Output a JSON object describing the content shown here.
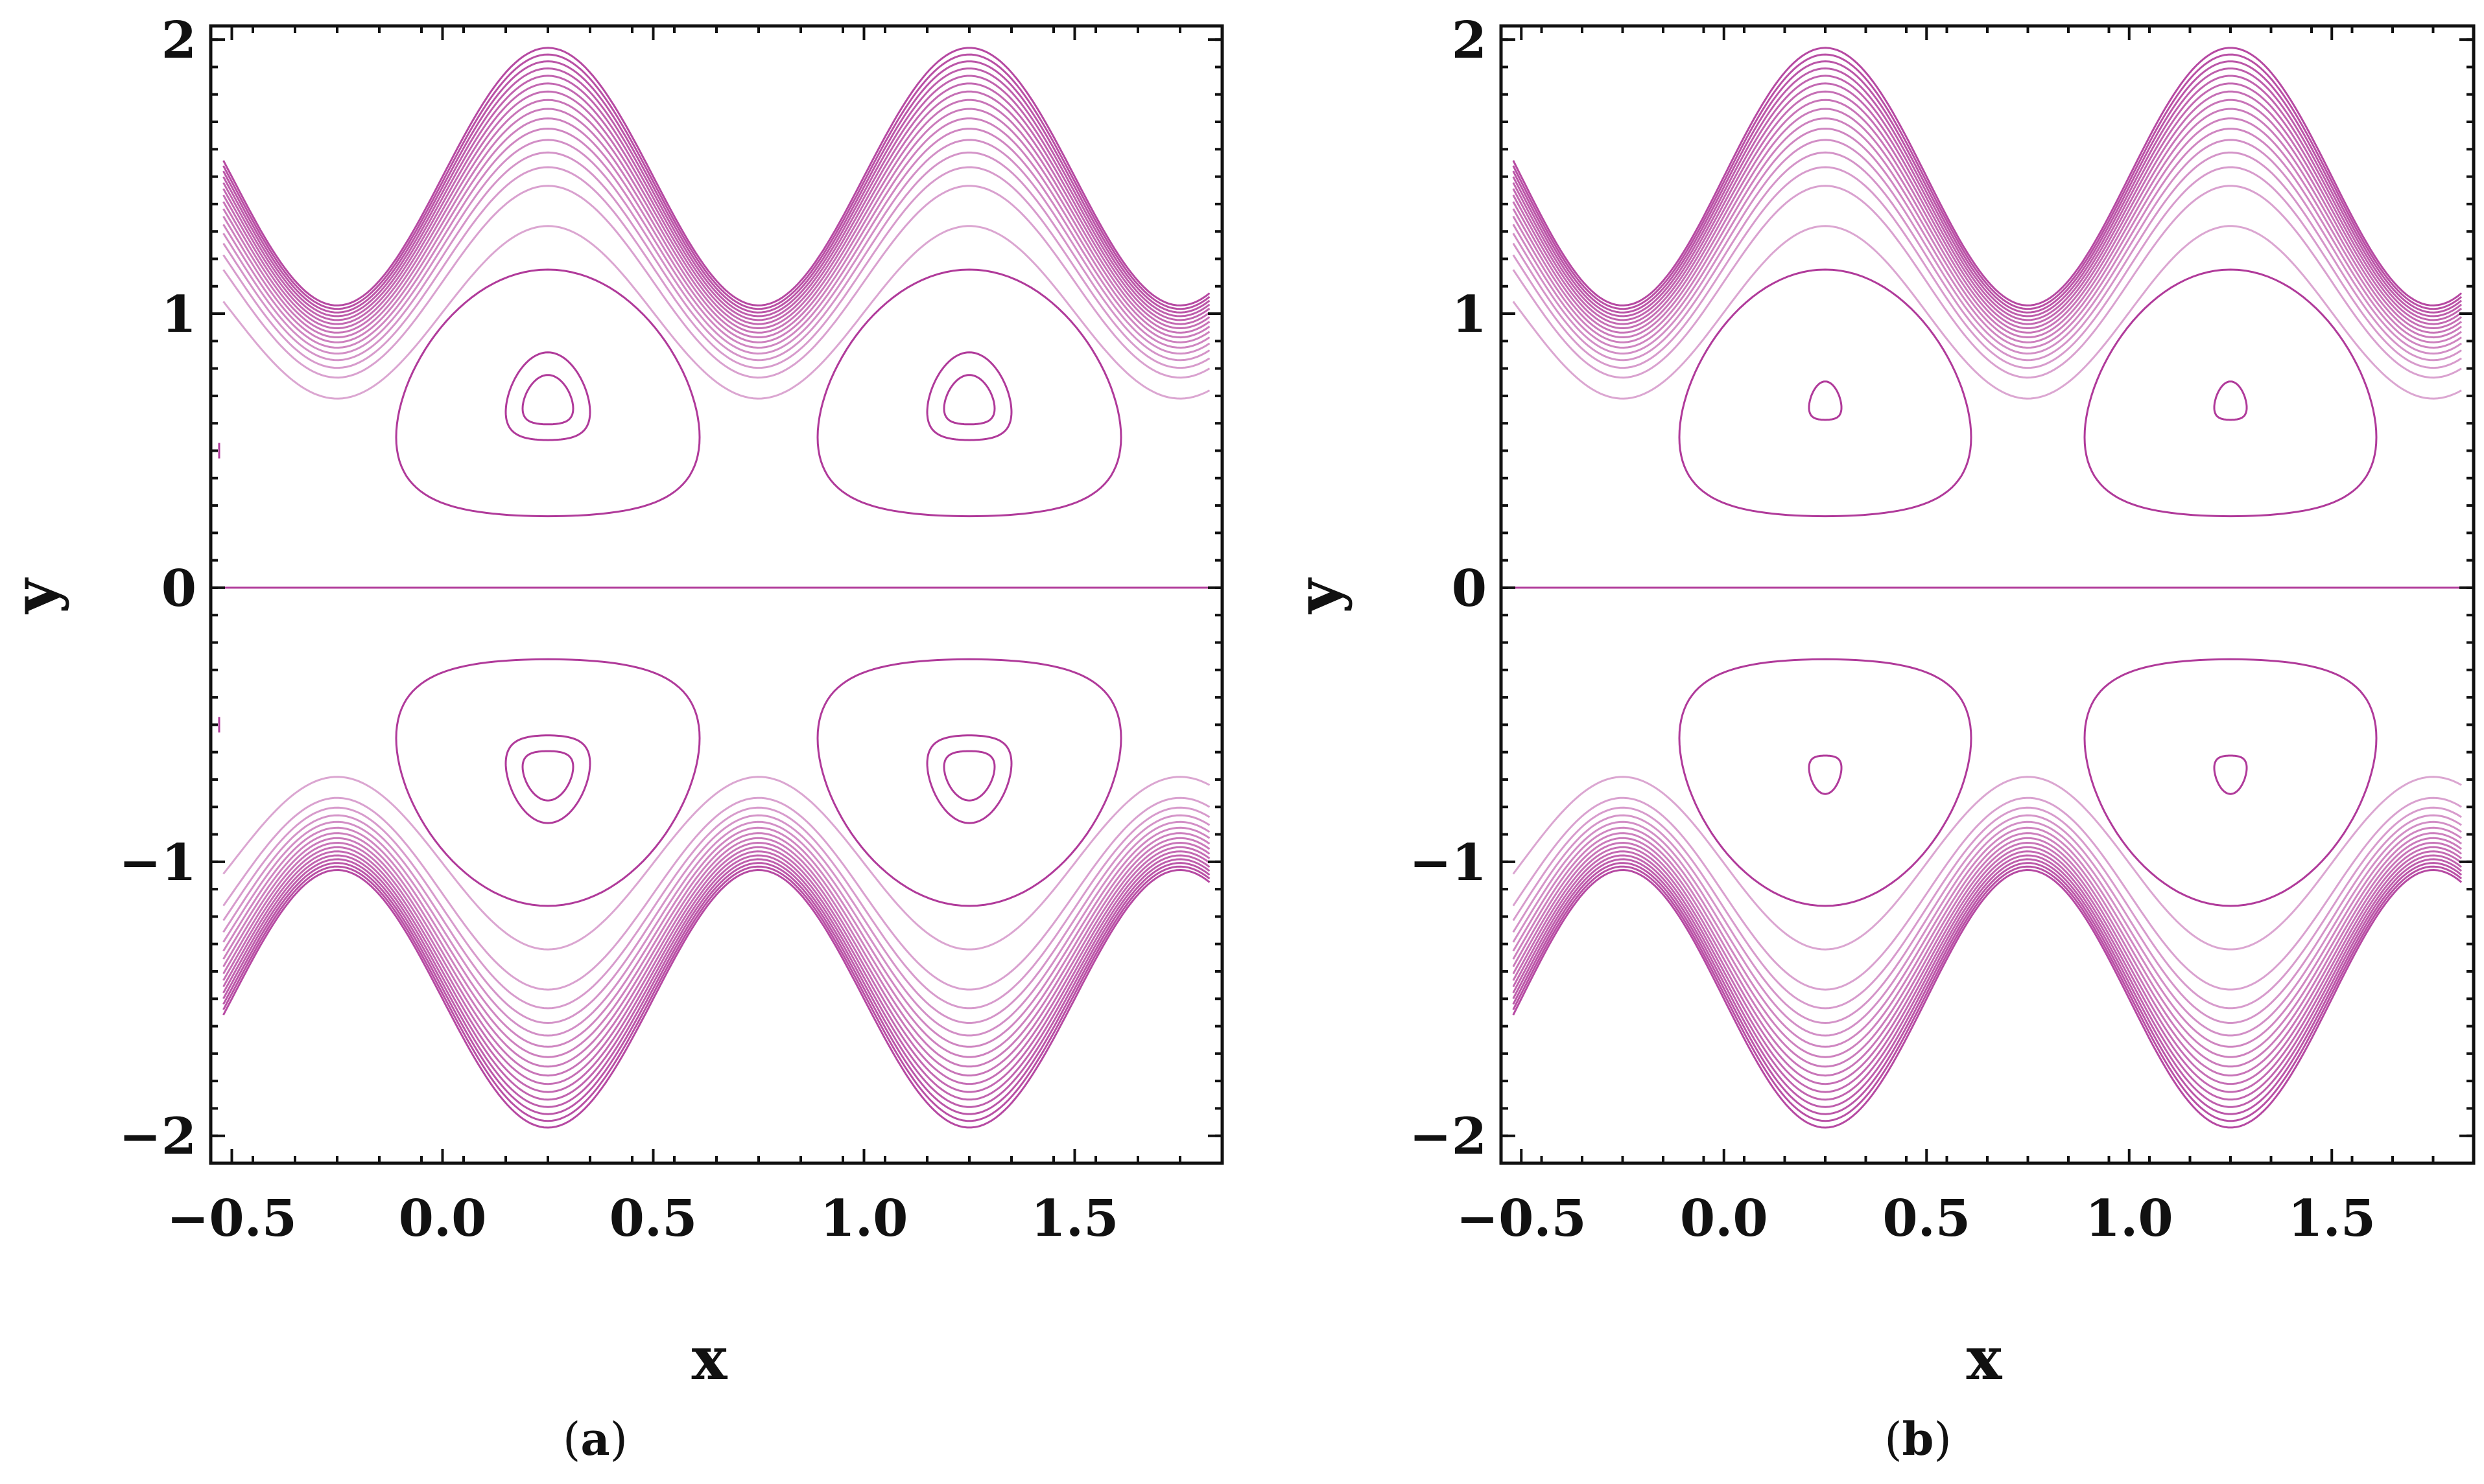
{
  "figure": {
    "stroke_color": "#b03a9a",
    "panels": [
      {
        "caption_open": "(",
        "caption_letter": "a",
        "caption_close": ")"
      },
      {
        "caption_open": "(",
        "caption_letter": "b",
        "caption_close": ")"
      }
    ]
  },
  "chart_data": [
    {
      "type": "contour",
      "panel": "a",
      "title": "",
      "xlabel": "x",
      "ylabel": "y",
      "xlim": [
        -0.55,
        1.85
      ],
      "ylim": [
        -2.1,
        2.05
      ],
      "xticks": [
        -0.5,
        0.0,
        0.5,
        1.0,
        1.5
      ],
      "xtick_labels": [
        "−0.5",
        "0.0",
        "0.5",
        "1.0",
        "1.5"
      ],
      "yticks": [
        -2,
        -1,
        0,
        1,
        2
      ],
      "ytick_labels": [
        "−2",
        "−1",
        "0",
        "1",
        "2"
      ],
      "wall": {
        "mean": 1.5,
        "amplitude": 0.47,
        "period": 1.0,
        "phase_x_of_max": 0.25
      },
      "wall_band_levels": 16,
      "centerline_y": 0,
      "vortex_centers": [
        [
          0.25,
          0.67
        ],
        [
          1.25,
          0.67
        ],
        [
          0.25,
          -0.67
        ],
        [
          1.25,
          -0.67
        ]
      ],
      "vortex_rings": [
        {
          "half_width": 0.36,
          "half_height": 0.45,
          "center_offset": -0.04
        },
        {
          "half_width": 0.1,
          "half_height": 0.16,
          "center_offset": 0.0
        },
        {
          "half_width": 0.06,
          "half_height": 0.09,
          "center_offset": 0.0
        }
      ],
      "stray_marks": [
        [
          -0.53,
          0.5
        ],
        [
          -0.53,
          -0.5
        ]
      ]
    },
    {
      "type": "contour",
      "panel": "b",
      "title": "",
      "xlabel": "x",
      "ylabel": "y",
      "xlim": [
        -0.55,
        1.85
      ],
      "ylim": [
        -2.1,
        2.05
      ],
      "xticks": [
        -0.5,
        0.0,
        0.5,
        1.0,
        1.5
      ],
      "xtick_labels": [
        "−0.5",
        "0.0",
        "0.5",
        "1.0",
        "1.5"
      ],
      "yticks": [
        -2,
        -1,
        0,
        1,
        2
      ],
      "ytick_labels": [
        "−2",
        "−1",
        "0",
        "1",
        "2"
      ],
      "wall": {
        "mean": 1.5,
        "amplitude": 0.47,
        "period": 1.0,
        "phase_x_of_max": 0.25
      },
      "wall_band_levels": 16,
      "centerline_y": 0,
      "vortex_centers": [
        [
          0.25,
          0.67
        ],
        [
          1.25,
          0.67
        ],
        [
          0.25,
          -0.67
        ],
        [
          1.25,
          -0.67
        ]
      ],
      "vortex_rings": [
        {
          "half_width": 0.36,
          "half_height": 0.45,
          "center_offset": -0.04
        },
        {
          "half_width": 0.04,
          "half_height": 0.07,
          "center_offset": 0.0
        }
      ],
      "stray_marks": []
    }
  ]
}
